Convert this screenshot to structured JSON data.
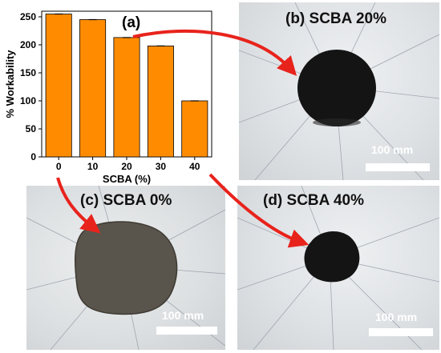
{
  "chart_data": {
    "type": "bar",
    "panel_label": "(a)",
    "categories": [
      "0",
      "10",
      "20",
      "30",
      "40"
    ],
    "values": [
      255,
      245,
      213,
      198,
      100
    ],
    "xlabel": "SCBA (%)",
    "ylabel": "% Workability",
    "ylim": [
      0,
      260
    ],
    "yticks": [
      "0",
      "50",
      "100",
      "150",
      "200",
      "250"
    ],
    "bar_color": "#ff8c00",
    "error_bars": true
  },
  "panels": {
    "b": {
      "label": "(b) SCBA 20%",
      "scale": "100 mm"
    },
    "c": {
      "label": "(c) SCBA 0%",
      "scale": "100 mm"
    },
    "d": {
      "label": "(d) SCBA 40%",
      "scale": "100 mm"
    }
  },
  "colors": {
    "arrow": "#e8231c",
    "sample_dark": "#141414",
    "sample_grey": "#5a554c"
  }
}
